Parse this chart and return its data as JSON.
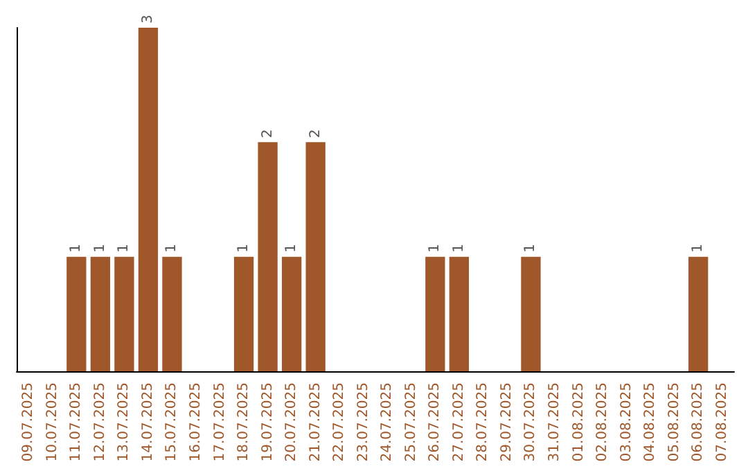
{
  "chart_data": {
    "type": "bar",
    "categories": [
      "09.07.2025",
      "10.07.2025",
      "11.07.2025",
      "12.07.2025",
      "13.07.2025",
      "14.07.2025",
      "15.07.2025",
      "16.07.2025",
      "17.07.2025",
      "18.07.2025",
      "19.07.2025",
      "20.07.2025",
      "21.07.2025",
      "22.07.2025",
      "23.07.2025",
      "24.07.2025",
      "25.07.2025",
      "26.07.2025",
      "27.07.2025",
      "28.07.2025",
      "29.07.2025",
      "30.07.2025",
      "31.07.2025",
      "01.08.2025",
      "02.08.2025",
      "03.08.2025",
      "04.08.2025",
      "05.08.2025",
      "06.08.2025",
      "07.08.2025"
    ],
    "series": [
      {
        "color": "#a0582a",
        "values": [
          0,
          0,
          1,
          1,
          1,
          3,
          1,
          0,
          0,
          1,
          2,
          1,
          2,
          0,
          0,
          0,
          0,
          1,
          1,
          0,
          0,
          1,
          0,
          0,
          0,
          0,
          0,
          0,
          1,
          0
        ],
        "value_labels": [
          null,
          null,
          "1",
          "1",
          "1",
          "3",
          "1",
          null,
          null,
          "1",
          "2",
          "1",
          "2",
          null,
          null,
          null,
          null,
          "1",
          "1",
          null,
          null,
          "1",
          null,
          null,
          null,
          null,
          null,
          null,
          "1",
          null
        ]
      }
    ],
    "grid": false
  }
}
